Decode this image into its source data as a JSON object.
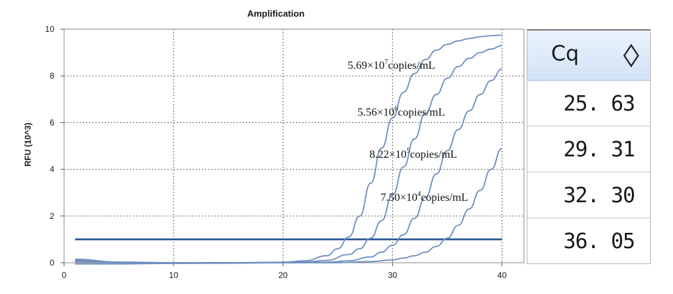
{
  "chart_data": {
    "type": "line",
    "title": "Amplification",
    "xlabel": "",
    "ylabel": "RFU (10^3)",
    "xlim": [
      0,
      42
    ],
    "ylim": [
      0,
      10
    ],
    "xticks": [
      0,
      10,
      20,
      30,
      40
    ],
    "yticks": [
      0,
      2,
      4,
      6,
      8,
      10
    ],
    "grid": true,
    "line_color": "#6f8fbf",
    "threshold": {
      "value": 1.0,
      "color": "#1f4e8c"
    },
    "series": [
      {
        "x": [
          1,
          5,
          10,
          15,
          20,
          22,
          24,
          25,
          26,
          27,
          28,
          29,
          30,
          31,
          32,
          33,
          34,
          35,
          36,
          37,
          38,
          39,
          40
        ],
        "y": [
          0.15,
          0.03,
          0.0,
          0.0,
          0.02,
          0.08,
          0.3,
          0.6,
          1.1,
          2.0,
          3.4,
          4.9,
          6.2,
          7.3,
          8.1,
          8.7,
          9.1,
          9.35,
          9.5,
          9.6,
          9.68,
          9.72,
          9.75
        ]
      },
      {
        "x": [
          1,
          5,
          10,
          15,
          20,
          22,
          24,
          26,
          27,
          28,
          29,
          30,
          31,
          32,
          33,
          34,
          35,
          36,
          37,
          38,
          39,
          40
        ],
        "y": [
          0.1,
          0.02,
          0.0,
          0.0,
          0.0,
          0.03,
          0.1,
          0.35,
          0.6,
          1.05,
          1.8,
          2.9,
          4.1,
          5.3,
          6.4,
          7.2,
          7.9,
          8.4,
          8.75,
          9.0,
          9.15,
          9.3
        ]
      },
      {
        "x": [
          1,
          5,
          10,
          15,
          20,
          24,
          26,
          28,
          29,
          30,
          31,
          32,
          33,
          34,
          35,
          36,
          37,
          38,
          39,
          40
        ],
        "y": [
          0.05,
          0.0,
          0.0,
          0.0,
          0.0,
          0.02,
          0.08,
          0.25,
          0.45,
          0.75,
          1.2,
          1.9,
          2.8,
          3.8,
          4.8,
          5.7,
          6.5,
          7.2,
          7.8,
          8.3
        ]
      },
      {
        "x": [
          1,
          5,
          10,
          15,
          20,
          25,
          28,
          30,
          31,
          32,
          33,
          34,
          35,
          36,
          37,
          38,
          39,
          40
        ],
        "y": [
          -0.05,
          -0.05,
          -0.03,
          -0.02,
          0.0,
          0.0,
          0.05,
          0.12,
          0.2,
          0.3,
          0.45,
          0.7,
          1.05,
          1.6,
          2.3,
          3.1,
          4.0,
          4.9
        ]
      }
    ],
    "annotations": [
      {
        "value": "5.69×10",
        "exp": "7",
        "unit": "copies/mL"
      },
      {
        "value": "5.56×10",
        "exp": "6",
        "unit": "copies/mL"
      },
      {
        "value": "8.22×10",
        "exp": "5",
        "unit": "copies/mL"
      },
      {
        "value": "7.50×10",
        "exp": "4",
        "unit": "copies/mL"
      }
    ]
  },
  "cq_table": {
    "header": "Cq",
    "sort_icon": "sort-diamond-icon",
    "values": [
      "25. 63",
      "29. 31",
      "32. 30",
      "36. 05"
    ]
  }
}
